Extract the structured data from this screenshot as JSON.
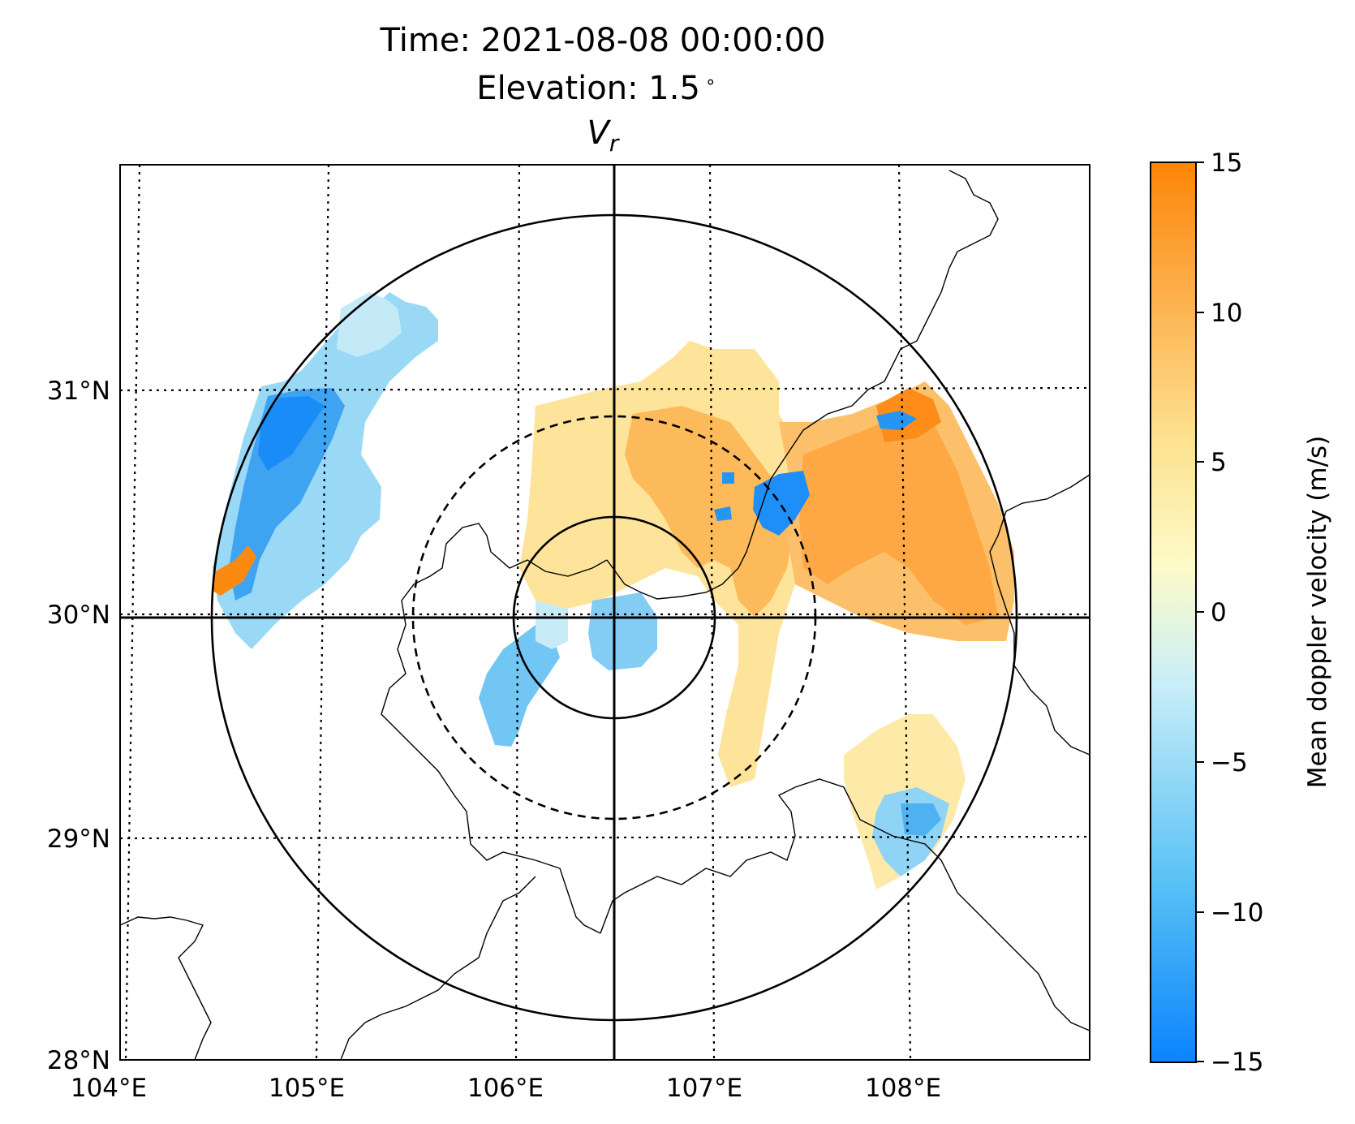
{
  "title": {
    "time": "Time: 2021-08-08 00:00:00",
    "elevation": "Elevation: 1.5",
    "elevation_unit": "∘",
    "variable": "V",
    "variable_sub": "r"
  },
  "map": {
    "lon_labels": [
      "104°E",
      "105°E",
      "106°E",
      "107°E",
      "108°E"
    ],
    "lat_labels": [
      "31°N",
      "30°N",
      "29°N",
      "28°N"
    ]
  },
  "colorbar": {
    "label": "Mean doppler velocity (m/s)",
    "ticks": [
      "15",
      "10",
      "5",
      "0",
      "−5",
      "−10",
      "−15"
    ],
    "vmin": -15,
    "vmax": 15,
    "colors": [
      "#0b84fd",
      "#58c1f5",
      "#c9eef8",
      "#fdfbc9",
      "#fde08c",
      "#fdb04e",
      "#fd8506"
    ]
  }
}
